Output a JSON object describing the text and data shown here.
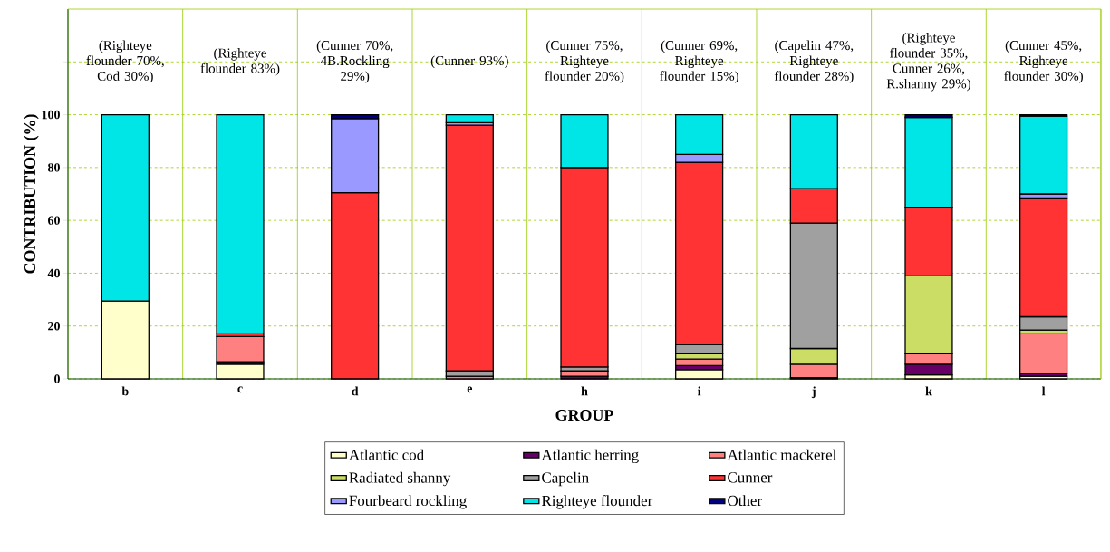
{
  "chart_data": {
    "type": "bar",
    "stacked": true,
    "xlabel": "GROUP",
    "ylabel": "CONTRIBUTION (%)",
    "categories": [
      "b",
      "c",
      "d",
      "e",
      "h",
      "i",
      "j",
      "k",
      "l"
    ],
    "ylim": [
      0,
      140
    ],
    "yticks": [
      0,
      20,
      40,
      60,
      80,
      100,
      {
        "value": 120,
        "label": null
      }
    ],
    "grid": true,
    "legend": "bottom",
    "annotations": [
      "(Righteye flounder 70%, Cod 30%)",
      "(Righteye flounder 83%)",
      "(Cunner 70%, 4B.Rockling 29%)",
      "(Cunner 93%)",
      "(Cunner 75%, Righteye flounder 20%)",
      "(Cunner 69%, Righteye flounder 15%)",
      "(Capelin 47%, Righteye flounder 28%)",
      "(Righteye flounder 35%, Cunner 26%, R.shanny 29%)",
      "(Cunner 45%, Righteye flounder 30%)"
    ],
    "series": [
      {
        "name": "Atlantic cod",
        "color": "#ffffcc",
        "values": [
          29.5,
          5.5,
          null,
          null,
          null,
          3.5,
          null,
          1.5,
          1
        ]
      },
      {
        "name": "Atlantic herring",
        "color": "#660066",
        "values": [
          null,
          1,
          null,
          null,
          1,
          1.5,
          0.5,
          4,
          1
        ]
      },
      {
        "name": "Atlantic mackerel",
        "color": "#ff8080",
        "values": [
          null,
          9.5,
          null,
          1,
          2,
          2.5,
          5,
          4,
          15
        ]
      },
      {
        "name": "Radiated shanny",
        "color": "#ccdd66",
        "values": [
          null,
          null,
          null,
          null,
          null,
          2,
          6,
          29.5,
          1.5
        ]
      },
      {
        "name": "Capelin",
        "color": "#a0a0a0",
        "values": [
          null,
          null,
          null,
          2,
          1.5,
          3.5,
          47.5,
          null,
          5
        ]
      },
      {
        "name": "Cunner",
        "color": "#ff3333",
        "values": [
          null,
          1,
          70.5,
          93,
          75.5,
          69,
          13,
          26,
          45
        ]
      },
      {
        "name": "Fourbeard rockling",
        "color": "#9999ff",
        "values": [
          null,
          null,
          28,
          1,
          null,
          3,
          null,
          null,
          1.5
        ]
      },
      {
        "name": "Righteye flounder",
        "color": "#00e6e6",
        "values": [
          70.5,
          83,
          null,
          3,
          20,
          15,
          28,
          34,
          29.5
        ]
      },
      {
        "name": "Other",
        "color": "#000080",
        "values": [
          null,
          null,
          1.5,
          null,
          null,
          null,
          null,
          1,
          0.5
        ]
      }
    ]
  }
}
